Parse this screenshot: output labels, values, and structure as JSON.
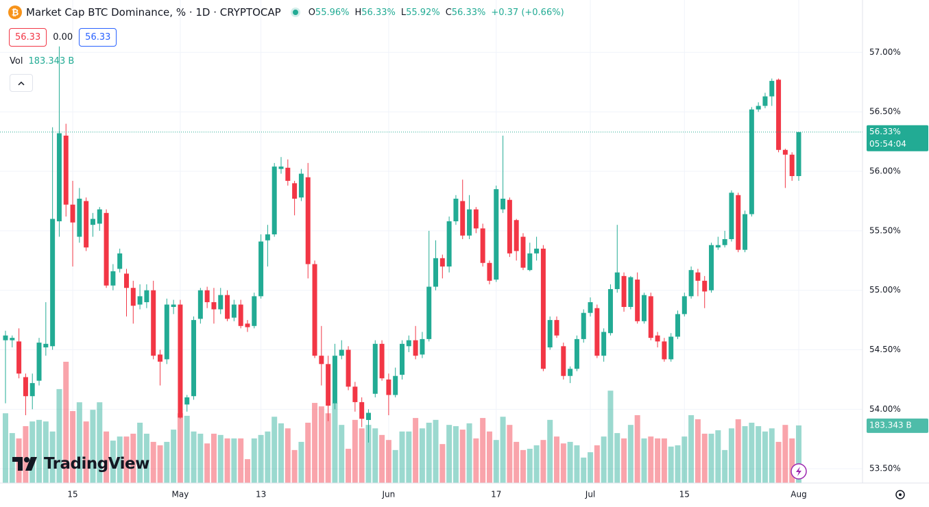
{
  "chart_data": {
    "type": "candlestick",
    "title": "Market Cap BTC Dominance, % · 1D · CRYPTOCAP",
    "ohlc_header": [
      {
        "key": "O",
        "value": "55.96%"
      },
      {
        "key": "H",
        "value": "56.33%"
      },
      {
        "key": "L",
        "value": "55.92%"
      },
      {
        "key": "C",
        "value": "56.33%"
      }
    ],
    "change": "+0.37 (+0.66%)",
    "quote": {
      "bid": "56.33",
      "spread": "0.00",
      "ask": "56.33"
    },
    "volume_title": "Vol",
    "volume_label": "183.343 B",
    "last_price_label": "56.33%",
    "countdown": "05:54:04",
    "logo": "TradingView",
    "up_color": "#22ab94",
    "down_color": "#f23645",
    "grid": true,
    "ylim": [
      53.38,
      57.44
    ],
    "yticks": [
      {
        "value": 57,
        "label": "57.00%"
      },
      {
        "value": 56.5,
        "label": "56.50%"
      },
      {
        "value": 56,
        "label": "56.00%"
      },
      {
        "value": 55.5,
        "label": "55.50%"
      },
      {
        "value": 55,
        "label": "55.00%"
      },
      {
        "value": 54.5,
        "label": "54.50%"
      },
      {
        "value": 54,
        "label": "54.00%"
      },
      {
        "value": 53.5,
        "label": "53.50%"
      }
    ],
    "xticks": [
      {
        "value": 10,
        "label": "15"
      },
      {
        "value": 26,
        "label": "May"
      },
      {
        "value": 38,
        "label": "13"
      },
      {
        "value": 57,
        "label": "Jun"
      },
      {
        "value": 73,
        "label": "17"
      },
      {
        "value": 87,
        "label": "Jul"
      },
      {
        "value": 101,
        "label": "15"
      },
      {
        "value": 118,
        "label": "Aug"
      }
    ],
    "open": [
      54.58,
      54.58,
      54.57,
      54.27,
      54.11,
      54.24,
      54.52,
      54.53,
      55.58,
      56.3,
      55.72,
      55.45,
      55.75,
      55.55,
      55.56,
      55.65,
      55.04,
      55.18,
      55.14,
      55.02,
      54.88,
      54.9,
      55.0,
      54.46,
      54.42,
      54.86,
      54.88,
      54.04,
      54.11,
      54.76,
      55.0,
      54.9,
      54.84,
      54.96,
      54.77,
      54.88,
      54.72,
      54.7,
      54.95,
      55.42,
      55.47,
      56.02,
      56.03,
      55.9,
      55.78,
      55.95,
      55.22,
      54.45,
      54.38,
      54.05,
      54.45,
      54.5,
      54.19,
      54.06,
      53.91,
      54.13,
      54.55,
      54.25,
      54.12,
      54.29,
      54.53,
      54.58,
      54.46,
      54.59,
      55.03,
      55.27,
      55.2,
      55.58,
      55.75,
      55.46,
      55.68,
      55.52,
      55.23,
      55.09,
      55.68,
      55.76,
      55.59,
      55.45,
      55.17,
      55.31,
      55.35,
      54.52,
      54.75,
      54.53,
      54.28,
      54.34,
      54.59,
      54.81,
      54.85,
      54.45,
      54.64,
      55.01,
      55.12,
      54.86,
      55.09,
      54.74,
      54.95,
      54.62,
      54.57,
      54.42,
      54.61,
      54.8,
      54.95,
      55.15,
      55.08,
      55.0,
      55.36,
      55.38,
      55.43,
      55.8,
      55.34,
      55.64,
      56.52,
      56.55,
      56.63,
      56.77,
      56.18,
      56.14,
      55.96
    ],
    "high": [
      54.66,
      54.62,
      54.68,
      54.3,
      54.3,
      54.6,
      54.9,
      56.37,
      57.05,
      56.4,
      55.92,
      55.86,
      55.78,
      55.65,
      55.7,
      55.68,
      55.22,
      55.35,
      55.18,
      55.08,
      55.05,
      55.05,
      55.08,
      54.5,
      54.93,
      54.92,
      54.92,
      54.12,
      54.78,
      55.02,
      55.03,
      55.02,
      55.02,
      55.0,
      54.92,
      54.92,
      54.75,
      54.98,
      55.47,
      55.55,
      56.07,
      56.12,
      56.1,
      55.92,
      56.02,
      56.07,
      55.25,
      54.7,
      54.45,
      54.55,
      54.58,
      54.53,
      54.23,
      54.1,
      54.0,
      54.58,
      54.58,
      54.3,
      54.35,
      54.58,
      54.62,
      54.7,
      54.65,
      55.5,
      55.42,
      55.3,
      55.62,
      55.8,
      55.93,
      55.8,
      55.7,
      55.56,
      55.25,
      55.88,
      56.3,
      55.78,
      55.6,
      55.48,
      55.4,
      55.45,
      55.38,
      54.78,
      54.78,
      54.56,
      54.36,
      54.62,
      54.84,
      54.94,
      54.88,
      54.68,
      55.05,
      55.55,
      55.15,
      55.12,
      55.15,
      54.98,
      54.98,
      54.65,
      54.6,
      54.64,
      54.83,
      54.98,
      55.2,
      55.18,
      55.12,
      55.4,
      55.45,
      55.5,
      55.84,
      55.82,
      55.67,
      56.54,
      56.58,
      56.66,
      56.78,
      56.78,
      56.19,
      56.16,
      56.33
    ],
    "low": [
      54.05,
      54.52,
      54.26,
      53.95,
      54.0,
      54.2,
      54.45,
      54.5,
      55.45,
      55.62,
      55.2,
      55.4,
      55.33,
      55.45,
      55.5,
      55.02,
      55.0,
      55.15,
      54.78,
      54.72,
      54.84,
      54.85,
      54.42,
      54.2,
      54.38,
      54.8,
      53.92,
      53.98,
      54.08,
      54.72,
      54.85,
      54.72,
      54.8,
      54.74,
      54.74,
      54.68,
      54.65,
      54.68,
      54.93,
      55.2,
      55.45,
      55.98,
      55.88,
      55.63,
      55.75,
      55.1,
      54.43,
      54.2,
      53.9,
      54.0,
      54.42,
      54.16,
      53.98,
      53.85,
      53.72,
      54.1,
      54.24,
      53.95,
      54.1,
      54.25,
      54.48,
      54.42,
      54.43,
      54.57,
      55.0,
      55.1,
      55.15,
      55.55,
      55.43,
      55.43,
      55.48,
      55.2,
      55.05,
      55.07,
      55.65,
      55.28,
      55.25,
      55.17,
      55.16,
      55.25,
      54.32,
      54.5,
      54.6,
      54.25,
      54.22,
      54.32,
      54.56,
      54.78,
      54.43,
      54.4,
      54.62,
      54.98,
      54.82,
      54.84,
      54.72,
      54.72,
      54.58,
      54.52,
      54.4,
      54.4,
      54.59,
      54.78,
      54.93,
      54.95,
      54.85,
      54.98,
      55.34,
      55.36,
      55.41,
      55.32,
      55.32,
      55.62,
      56.5,
      56.53,
      56.55,
      56.16,
      55.86,
      55.92,
      55.92
    ],
    "close": [
      54.62,
      54.6,
      54.3,
      54.11,
      54.22,
      54.56,
      54.55,
      55.6,
      56.32,
      55.72,
      55.57,
      55.77,
      55.36,
      55.6,
      55.68,
      55.04,
      55.16,
      55.31,
      55.02,
      54.87,
      54.95,
      55.0,
      54.45,
      54.4,
      54.88,
      54.88,
      53.93,
      54.1,
      54.75,
      55.0,
      54.9,
      54.84,
      54.96,
      54.76,
      54.88,
      54.7,
      54.69,
      54.95,
      55.41,
      55.47,
      56.04,
      56.04,
      55.92,
      55.77,
      55.98,
      55.22,
      54.45,
      54.38,
      54.03,
      54.45,
      54.5,
      54.19,
      54.06,
      53.92,
      53.97,
      54.55,
      54.26,
      54.12,
      54.28,
      54.55,
      54.58,
      54.45,
      54.59,
      55.03,
      55.27,
      55.2,
      55.58,
      55.77,
      55.46,
      55.68,
      55.52,
      55.23,
      55.08,
      55.85,
      55.77,
      55.31,
      55.33,
      55.19,
      55.31,
      55.35,
      54.34,
      54.75,
      54.62,
      54.28,
      54.34,
      54.59,
      54.81,
      54.9,
      54.45,
      54.65,
      55.01,
      55.15,
      54.86,
      55.11,
      54.74,
      54.96,
      54.6,
      54.57,
      54.42,
      54.61,
      54.8,
      54.95,
      55.17,
      55.08,
      54.99,
      55.38,
      55.38,
      55.43,
      55.82,
      55.34,
      55.64,
      56.52,
      56.55,
      56.63,
      56.76,
      56.18,
      56.14,
      55.96,
      56.33
    ],
    "volume": [
      222,
      159,
      142,
      181,
      196,
      201,
      196,
      164,
      299,
      386,
      229,
      257,
      196,
      233,
      257,
      164,
      135,
      148,
      148,
      157,
      192,
      157,
      131,
      120,
      131,
      170,
      222,
      214,
      164,
      157,
      126,
      157,
      153,
      142,
      142,
      142,
      76,
      142,
      153,
      164,
      211,
      190,
      174,
      105,
      131,
      192,
      255,
      244,
      222,
      255,
      185,
      109,
      201,
      174,
      185,
      174,
      153,
      137,
      105,
      164,
      164,
      207,
      174,
      192,
      201,
      124,
      185,
      181,
      170,
      190,
      142,
      207,
      164,
      137,
      211,
      185,
      131,
      105,
      109,
      120,
      137,
      201,
      148,
      126,
      131,
      120,
      81,
      98,
      120,
      148,
      294,
      159,
      142,
      185,
      216,
      142,
      148,
      142,
      142,
      116,
      120,
      148,
      216,
      203,
      157,
      157,
      168,
      105,
      174,
      203,
      181,
      192,
      181,
      164,
      174,
      131,
      185,
      142,
      183.343
    ]
  }
}
